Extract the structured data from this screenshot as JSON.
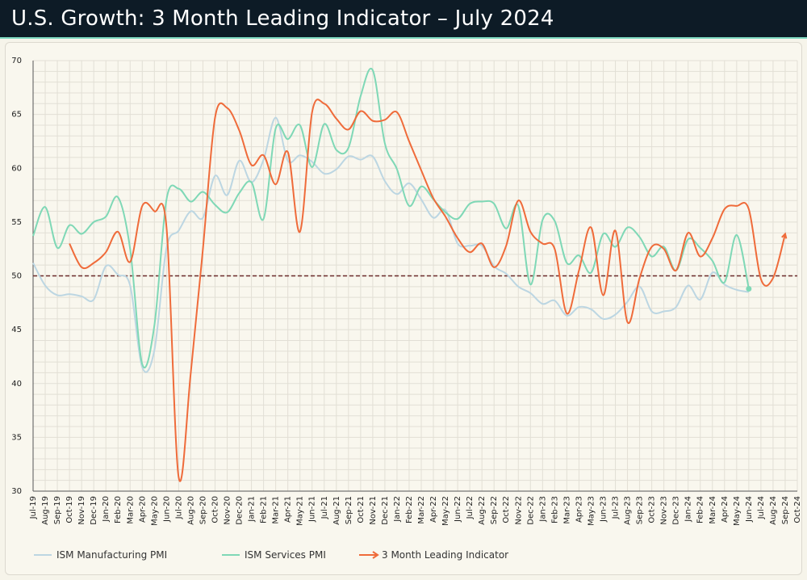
{
  "header": {
    "title": "U.S. Growth: 3 Month Leading Indicator – July 2024"
  },
  "colors": {
    "manufacturing": "#bcd6e2",
    "services": "#7fd8b6",
    "leading": "#ef6b3a",
    "reference": "#6b2a2a",
    "grid": "#e2dfd5"
  },
  "chart_data": {
    "type": "line",
    "title": "U.S. Growth: 3 Month Leading Indicator – July 2024",
    "xlabel": "",
    "ylabel": "",
    "ylim": [
      30,
      70
    ],
    "yticks": [
      "70",
      "65",
      "60",
      "55",
      "50",
      "45",
      "40",
      "35",
      "30"
    ],
    "reference_line": 50,
    "grid": true,
    "legend_position": "bottom-left",
    "categories": [
      "Jul-19",
      "Aug-19",
      "Sep-19",
      "Oct-19",
      "Nov-19",
      "Dec-19",
      "Jan-20",
      "Feb-20",
      "Mar-20",
      "Apr-20",
      "May-20",
      "Jun-20",
      "Jul-20",
      "Aug-20",
      "Sep-20",
      "Oct-20",
      "Nov-20",
      "Dec-20",
      "Jan-21",
      "Feb-21",
      "Mar-21",
      "Apr-21",
      "May-21",
      "Jun-21",
      "Jul-21",
      "Aug-21",
      "Sep-21",
      "Oct-21",
      "Nov-21",
      "Dec-21",
      "Jan-22",
      "Feb-22",
      "Mar-22",
      "Apr-22",
      "May-22",
      "Jun-22",
      "Jul-22",
      "Aug-22",
      "Sep-22",
      "Oct-22",
      "Nov-22",
      "Dec-22",
      "Jan-23",
      "Feb-23",
      "Mar-23",
      "Apr-23",
      "May-23",
      "Jun-23",
      "Jul-23",
      "Aug-23",
      "Sep-23",
      "Oct-23",
      "Nov-23",
      "Dec-23",
      "Jan-24",
      "Feb-24",
      "Mar-24",
      "Apr-24",
      "May-24",
      "Jun-24",
      "Jul-24",
      "Aug-24",
      "Sep-24",
      "Oct-24"
    ],
    "series": [
      {
        "name": "ISM Manufacturing PMI",
        "color": "#bcd6e2",
        "values": [
          51.2,
          49.1,
          48.2,
          48.3,
          48.1,
          47.8,
          50.9,
          50.1,
          49.1,
          41.5,
          43.1,
          52.6,
          54.2,
          56.0,
          55.4,
          59.3,
          57.5,
          60.7,
          58.7,
          60.8,
          64.7,
          60.7,
          61.2,
          60.6,
          59.5,
          59.9,
          61.1,
          60.8,
          61.1,
          58.8,
          57.6,
          58.6,
          57.1,
          55.4,
          56.1,
          53.0,
          52.8,
          52.8,
          50.9,
          50.2,
          49.0,
          48.4,
          47.4,
          47.7,
          46.3,
          47.1,
          46.9,
          46.0,
          46.4,
          47.6,
          49.0,
          46.7,
          46.7,
          47.1,
          49.1,
          47.8,
          50.3,
          49.2,
          48.7,
          48.5,
          null,
          null,
          null,
          null
        ]
      },
      {
        "name": "ISM Services PMI",
        "color": "#7fd8b6",
        "values": [
          53.7,
          56.4,
          52.6,
          54.7,
          53.9,
          55.0,
          55.5,
          57.3,
          52.5,
          41.8,
          45.4,
          57.1,
          58.1,
          56.9,
          57.8,
          56.6,
          55.9,
          57.7,
          58.7,
          55.3,
          63.7,
          62.7,
          64.0,
          60.1,
          64.1,
          61.7,
          61.9,
          66.7,
          69.1,
          62.3,
          59.9,
          56.5,
          58.3,
          57.1,
          55.9,
          55.3,
          56.7,
          56.9,
          56.7,
          54.4,
          56.5,
          49.2,
          55.2,
          55.1,
          51.2,
          51.9,
          50.3,
          53.9,
          52.7,
          54.5,
          53.6,
          51.8,
          52.7,
          50.5,
          53.4,
          52.6,
          51.4,
          49.4,
          53.8,
          48.8,
          null,
          null,
          null,
          null
        ]
      },
      {
        "name": "3 Month Leading Indicator",
        "color": "#ef6b3a",
        "values": [
          null,
          null,
          null,
          53.0,
          50.8,
          51.2,
          52.2,
          54.1,
          51.3,
          56.5,
          56.0,
          54.5,
          31.3,
          41.0,
          52.5,
          64.7,
          65.6,
          63.5,
          60.3,
          61.2,
          58.5,
          61.5,
          54.1,
          65.2,
          66.0,
          64.6,
          63.6,
          65.3,
          64.4,
          64.5,
          65.2,
          62.5,
          59.8,
          57.2,
          55.5,
          53.5,
          52.2,
          53.0,
          50.8,
          52.8,
          57.0,
          54.1,
          53.0,
          52.5,
          46.5,
          50.5,
          54.5,
          48.2,
          54.2,
          45.7,
          49.8,
          52.7,
          52.5,
          50.5,
          54.0,
          51.8,
          53.5,
          56.2,
          56.5,
          56.2,
          49.7,
          49.8,
          53.9,
          null
        ]
      }
    ]
  }
}
